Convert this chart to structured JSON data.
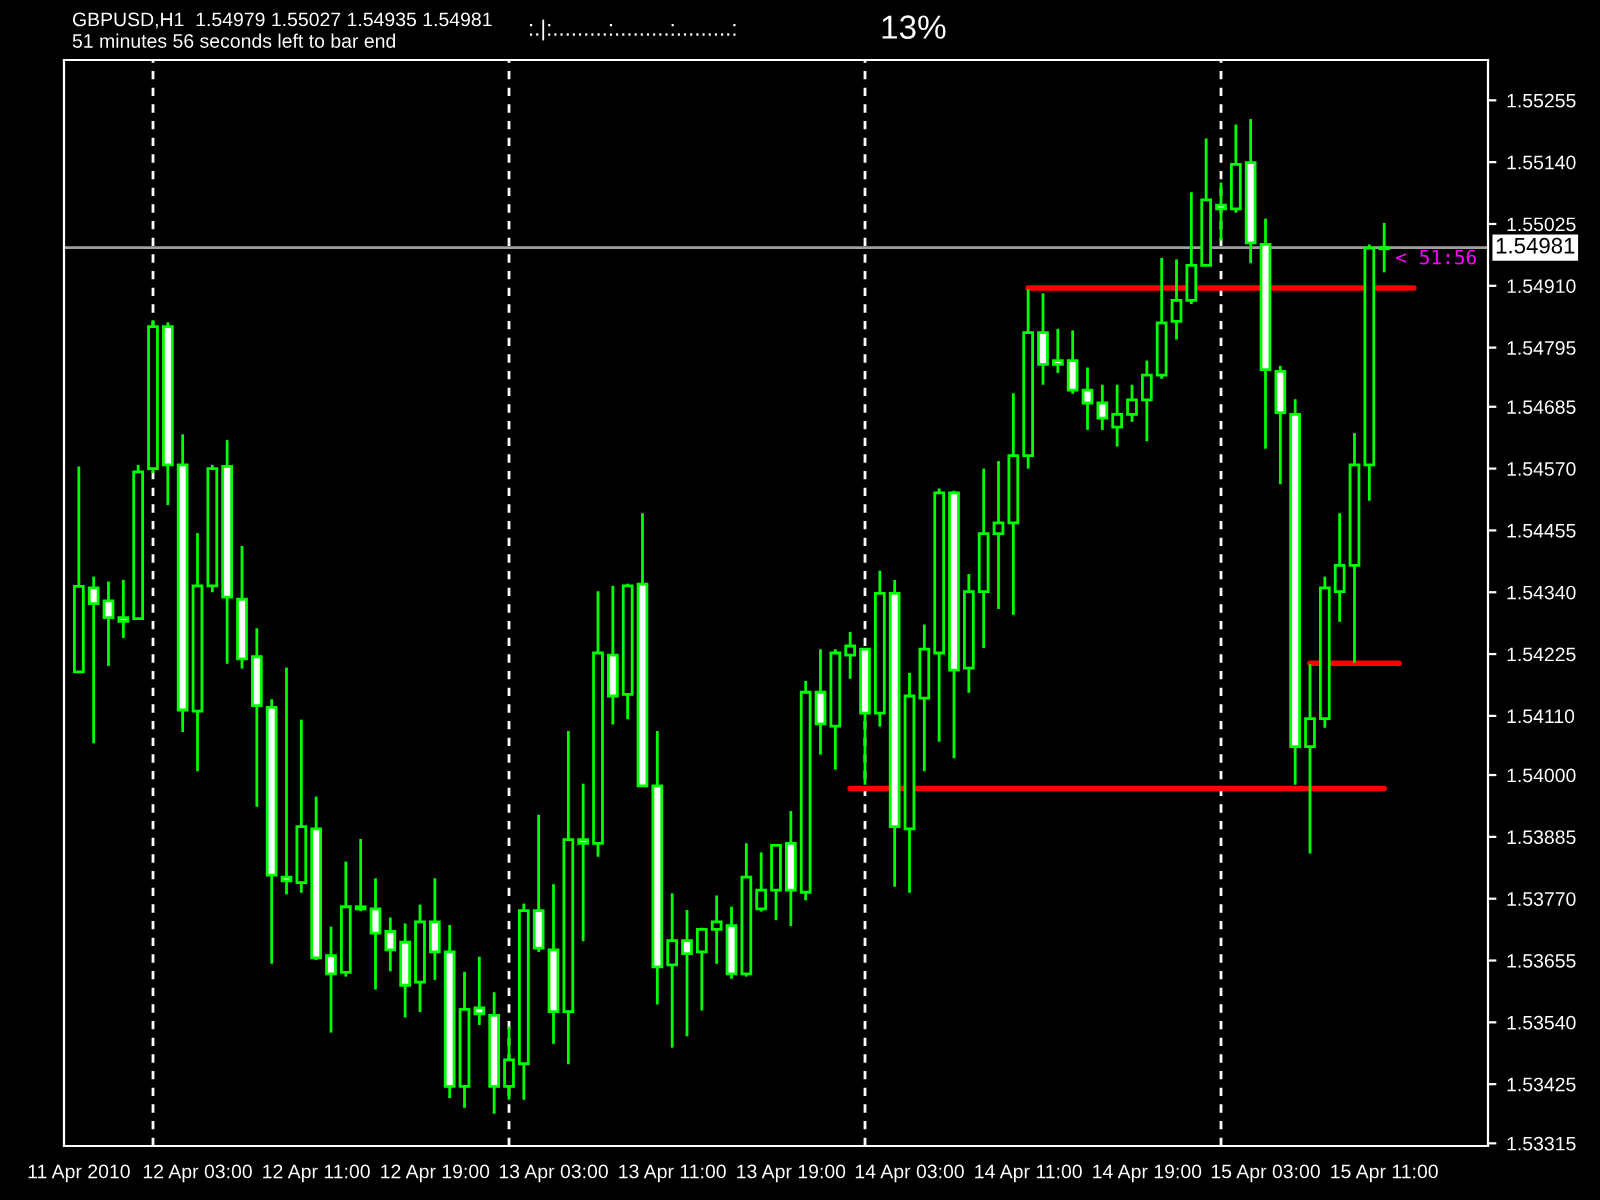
{
  "chart_data": {
    "type": "candlestick",
    "title": "GBPUSD,H1  1.54979 1.55027 1.54935 1.54981",
    "subtitle": "51 minutes 56 seconds left to bar end",
    "annotations": [
      ":.|:.........:.........:.........:",
      "13%",
      {
        "text": "< 51:56",
        "x": "2010-04-15T11:00",
        "y": 1.54981
      }
    ],
    "color": "#00ff00",
    "x": [
      "2010-04-11T19:00",
      "2010-04-11T20:00",
      "2010-04-11T21:00",
      "2010-04-11T22:00",
      "2010-04-11T23:00",
      "2010-04-12T00:00",
      "2010-04-12T01:00",
      "2010-04-12T02:00",
      "2010-04-12T03:00",
      "2010-04-12T04:00",
      "2010-04-12T05:00",
      "2010-04-12T06:00",
      "2010-04-12T07:00",
      "2010-04-12T08:00",
      "2010-04-12T09:00",
      "2010-04-12T10:00",
      "2010-04-12T11:00",
      "2010-04-12T12:00",
      "2010-04-12T13:00",
      "2010-04-12T14:00",
      "2010-04-12T15:00",
      "2010-04-12T16:00",
      "2010-04-12T17:00",
      "2010-04-12T18:00",
      "2010-04-12T19:00",
      "2010-04-12T20:00",
      "2010-04-12T21:00",
      "2010-04-12T22:00",
      "2010-04-12T23:00",
      "2010-04-13T00:00",
      "2010-04-13T01:00",
      "2010-04-13T02:00",
      "2010-04-13T03:00",
      "2010-04-13T04:00",
      "2010-04-13T05:00",
      "2010-04-13T06:00",
      "2010-04-13T07:00",
      "2010-04-13T08:00",
      "2010-04-13T09:00",
      "2010-04-13T10:00",
      "2010-04-13T11:00",
      "2010-04-13T12:00",
      "2010-04-13T13:00",
      "2010-04-13T14:00",
      "2010-04-13T15:00",
      "2010-04-13T16:00",
      "2010-04-13T17:00",
      "2010-04-13T18:00",
      "2010-04-13T19:00",
      "2010-04-13T20:00",
      "2010-04-13T21:00",
      "2010-04-13T22:00",
      "2010-04-13T23:00",
      "2010-04-14T00:00",
      "2010-04-14T01:00",
      "2010-04-14T02:00",
      "2010-04-14T03:00",
      "2010-04-14T04:00",
      "2010-04-14T05:00",
      "2010-04-14T06:00",
      "2010-04-14T07:00",
      "2010-04-14T08:00",
      "2010-04-14T09:00",
      "2010-04-14T10:00",
      "2010-04-14T11:00",
      "2010-04-14T12:00",
      "2010-04-14T13:00",
      "2010-04-14T14:00",
      "2010-04-14T15:00",
      "2010-04-14T16:00",
      "2010-04-14T17:00",
      "2010-04-14T18:00",
      "2010-04-14T19:00",
      "2010-04-14T20:00",
      "2010-04-14T21:00",
      "2010-04-14T22:00",
      "2010-04-14T23:00",
      "2010-04-15T00:00",
      "2010-04-15T01:00",
      "2010-04-15T02:00",
      "2010-04-15T03:00",
      "2010-04-15T04:00",
      "2010-04-15T05:00",
      "2010-04-15T06:00",
      "2010-04-15T07:00",
      "2010-04-15T08:00",
      "2010-04-15T09:00",
      "2010-04-15T10:00",
      "2010-04-15T11:00"
    ],
    "ohlc": [
      [
        1.54192,
        1.54574,
        1.54192,
        1.54351
      ],
      [
        1.54348,
        1.54369,
        1.54059,
        1.54319
      ],
      [
        1.54324,
        1.5436,
        1.54203,
        1.54293
      ],
      [
        1.54293,
        1.54363,
        1.54255,
        1.54286
      ],
      [
        1.54291,
        1.54577,
        1.54291,
        1.54564
      ],
      [
        1.5457,
        1.54846,
        1.54562,
        1.54834
      ],
      [
        1.54834,
        1.54842,
        1.54502,
        1.54577
      ],
      [
        1.54577,
        1.54634,
        1.5408,
        1.54121
      ],
      [
        1.54119,
        1.5445,
        1.54007,
        1.54352
      ],
      [
        1.54352,
        1.54577,
        1.5434,
        1.5457
      ],
      [
        1.54574,
        1.54623,
        1.54207,
        1.54331
      ],
      [
        1.54327,
        1.54426,
        1.54198,
        1.54216
      ],
      [
        1.5422,
        1.54273,
        1.53941,
        1.54129
      ],
      [
        1.54126,
        1.54141,
        1.53649,
        1.53814
      ],
      [
        1.5381,
        1.542,
        1.53778,
        1.53803
      ],
      [
        1.538,
        1.54103,
        1.53781,
        1.53904
      ],
      [
        1.539,
        1.5396,
        1.53656,
        1.5366
      ],
      [
        1.53664,
        1.53718,
        1.53521,
        1.5363
      ],
      [
        1.53633,
        1.53839,
        1.53625,
        1.53755
      ],
      [
        1.53755,
        1.53881,
        1.53747,
        1.53751
      ],
      [
        1.53751,
        1.53808,
        1.53601,
        1.53706
      ],
      [
        1.53709,
        1.53735,
        1.53635,
        1.53675
      ],
      [
        1.53689,
        1.53724,
        1.53549,
        1.53609
      ],
      [
        1.53615,
        1.53759,
        1.53559,
        1.53727
      ],
      [
        1.53727,
        1.53808,
        1.53619,
        1.53671
      ],
      [
        1.53671,
        1.53721,
        1.53399,
        1.53421
      ],
      [
        1.53421,
        1.53634,
        1.53381,
        1.53564
      ],
      [
        1.53567,
        1.53662,
        1.53535,
        1.53556
      ],
      [
        1.53553,
        1.53596,
        1.5337,
        1.53421
      ],
      [
        1.53421,
        1.53532,
        1.53396,
        1.5347
      ],
      [
        1.53463,
        1.53761,
        1.53396,
        1.53748
      ],
      [
        1.53748,
        1.53926,
        1.53671,
        1.53678
      ],
      [
        1.53675,
        1.53797,
        1.535,
        1.5356
      ],
      [
        1.5356,
        1.54082,
        1.53462,
        1.5388
      ],
      [
        1.5388,
        1.53984,
        1.53691,
        1.53873
      ],
      [
        1.53873,
        1.54342,
        1.53848,
        1.54227
      ],
      [
        1.54223,
        1.54352,
        1.54094,
        1.54147
      ],
      [
        1.5415,
        1.54356,
        1.54104,
        1.54352
      ],
      [
        1.54355,
        1.54487,
        1.5398,
        1.5398
      ],
      [
        1.5398,
        1.54082,
        1.53573,
        1.53643
      ],
      [
        1.53647,
        1.5378,
        1.53493,
        1.53692
      ],
      [
        1.53692,
        1.53749,
        1.53514,
        1.53668
      ],
      [
        1.53671,
        1.53716,
        1.53562,
        1.53713
      ],
      [
        1.53713,
        1.53776,
        1.53649,
        1.53727
      ],
      [
        1.5372,
        1.53755,
        1.53621,
        1.5363
      ],
      [
        1.5363,
        1.53873,
        1.53625,
        1.5381
      ],
      [
        1.53751,
        1.53856,
        1.53746,
        1.53786
      ],
      [
        1.53786,
        1.53869,
        1.5373,
        1.53869
      ],
      [
        1.53873,
        1.53933,
        1.53719,
        1.53786
      ],
      [
        1.53782,
        1.54175,
        1.53767,
        1.54154
      ],
      [
        1.54154,
        1.54234,
        1.54038,
        1.54095
      ],
      [
        1.54091,
        1.54234,
        1.5401,
        1.54227
      ],
      [
        1.54223,
        1.54266,
        1.54179,
        1.5424
      ],
      [
        1.54234,
        1.54234,
        1.53982,
        1.54115
      ],
      [
        1.54115,
        1.5438,
        1.5409,
        1.54338
      ],
      [
        1.54338,
        1.54363,
        1.53792,
        1.53904
      ],
      [
        1.539,
        1.5419,
        1.53781,
        1.54147
      ],
      [
        1.54143,
        1.5428,
        1.54007,
        1.54234
      ],
      [
        1.54227,
        1.54533,
        1.54062,
        1.54525
      ],
      [
        1.54525,
        1.54529,
        1.54031,
        1.54195
      ],
      [
        1.54199,
        1.54374,
        1.54153,
        1.54341
      ],
      [
        1.54341,
        1.5457,
        1.54236,
        1.54449
      ],
      [
        1.54449,
        1.54584,
        1.54309,
        1.54469
      ],
      [
        1.54469,
        1.5471,
        1.54298,
        1.54594
      ],
      [
        1.54594,
        1.54903,
        1.5457,
        1.54823
      ],
      [
        1.54823,
        1.54896,
        1.54726,
        1.54764
      ],
      [
        1.54771,
        1.5483,
        1.54748,
        1.54764
      ],
      [
        1.54771,
        1.54827,
        1.54709,
        1.54716
      ],
      [
        1.54716,
        1.54758,
        1.54642,
        1.54692
      ],
      [
        1.54692,
        1.54726,
        1.54642,
        1.54664
      ],
      [
        1.54647,
        1.54726,
        1.54611,
        1.54671
      ],
      [
        1.54671,
        1.54726,
        1.54657,
        1.54698
      ],
      [
        1.54698,
        1.54771,
        1.54621,
        1.54744
      ],
      [
        1.54744,
        1.54962,
        1.54737,
        1.54841
      ],
      [
        1.54844,
        1.54959,
        1.5481,
        1.54883
      ],
      [
        1.54883,
        1.55084,
        1.54876,
        1.54948
      ],
      [
        1.54948,
        1.55184,
        1.54948,
        1.5507
      ],
      [
        1.5506,
        1.55102,
        1.54994,
        1.55053
      ],
      [
        1.55053,
        1.5521,
        1.55046,
        1.55136
      ],
      [
        1.55139,
        1.5522,
        1.54952,
        1.5499
      ],
      [
        1.54987,
        1.55035,
        1.54607,
        1.54754
      ],
      [
        1.54751,
        1.54761,
        1.54541,
        1.54674
      ],
      [
        1.54671,
        1.54699,
        1.53982,
        1.54053
      ],
      [
        1.54053,
        1.54206,
        1.53854,
        1.54105
      ],
      [
        1.54105,
        1.54369,
        1.54088,
        1.54348
      ],
      [
        1.54341,
        1.54487,
        1.54285,
        1.5439
      ],
      [
        1.5439,
        1.54636,
        1.54209,
        1.54577
      ],
      [
        1.54577,
        1.54987,
        1.5451,
        1.5498
      ],
      [
        1.54979,
        1.55027,
        1.54935,
        1.54981
      ]
    ],
    "series": [
      {
        "type": "line",
        "color": "#ff0000",
        "x": [
          "2010-04-14T11:00",
          "2010-04-15T13:00"
        ],
        "values": [
          1.54906,
          1.54906
        ]
      },
      {
        "type": "line",
        "color": "#ff0000",
        "x": [
          "2010-04-13T23:00",
          "2010-04-15T11:00"
        ],
        "values": [
          1.53975,
          1.53975
        ]
      },
      {
        "type": "line",
        "color": "#ff0000",
        "x": [
          "2010-04-15T06:00",
          "2010-04-15T12:00"
        ],
        "values": [
          1.54208,
          1.54208
        ]
      }
    ],
    "ref_lines": [
      {
        "axis": "x",
        "value": "2010-04-12T00:00",
        "color": "#ffffff",
        "line_style": "dashed"
      },
      {
        "axis": "x",
        "value": "2010-04-13T00:00",
        "color": "#ffffff",
        "line_style": "dashed"
      },
      {
        "axis": "x",
        "value": "2010-04-14T00:00",
        "color": "#ffffff",
        "line_style": "dashed"
      },
      {
        "axis": "x",
        "value": "2010-04-15T00:00",
        "color": "#ffffff",
        "line_style": "dashed"
      },
      {
        "axis": "y",
        "value": 1.54981,
        "label": "1.54981",
        "color": "#a0a0a0",
        "line_style": "solid"
      }
    ],
    "xlim": [
      "2010-04-11T18:00",
      "2010-04-15T18:00"
    ],
    "xticks": [
      {
        "value": "2010-04-11T19:00",
        "label": "11 Apr 2010"
      },
      {
        "value": "2010-04-12T03:00",
        "label": "12 Apr 03:00"
      },
      {
        "value": "2010-04-12T11:00",
        "label": "12 Apr 11:00"
      },
      {
        "value": "2010-04-12T19:00",
        "label": "12 Apr 19:00"
      },
      {
        "value": "2010-04-13T03:00",
        "label": "13 Apr 03:00"
      },
      {
        "value": "2010-04-13T11:00",
        "label": "13 Apr 11:00"
      },
      {
        "value": "2010-04-13T19:00",
        "label": "13 Apr 19:00"
      },
      {
        "value": "2010-04-14T03:00",
        "label": "14 Apr 03:00"
      },
      {
        "value": "2010-04-14T11:00",
        "label": "14 Apr 11:00"
      },
      {
        "value": "2010-04-14T19:00",
        "label": "14 Apr 19:00"
      },
      {
        "value": "2010-04-15T03:00",
        "label": "15 Apr 03:00"
      },
      {
        "value": "2010-04-15T11:00",
        "label": "15 Apr 11:00"
      }
    ],
    "ylim": [
      1.5331,
      1.5533
    ],
    "yticks": [
      1.53315,
      1.53425,
      {
        "value": 1.5354,
        "label": "1.53540"
      },
      1.53655,
      {
        "value": 1.5377,
        "label": "1.53770"
      },
      1.53885,
      {
        "value": 1.54,
        "label": "1.54000"
      },
      {
        "value": 1.5411,
        "label": "1.54110"
      },
      1.54225,
      {
        "value": 1.5434,
        "label": "1.54340"
      },
      1.54455,
      {
        "value": 1.5457,
        "label": "1.54570"
      },
      1.54685,
      1.54795,
      {
        "value": 1.5491,
        "label": "1.54910"
      },
      1.55025,
      {
        "value": 1.5514,
        "label": "1.55140"
      },
      1.55255
    ],
    "grid": false,
    "legend": false
  }
}
